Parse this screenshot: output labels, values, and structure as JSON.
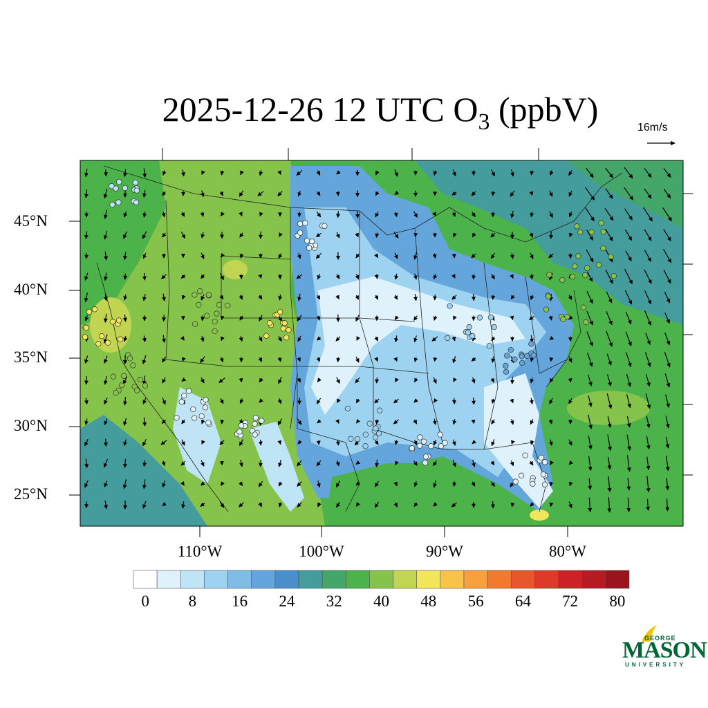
{
  "title": {
    "main": "2025-12-26 12 UTC O",
    "sub": "3",
    "units": " (ppbV)"
  },
  "wind_reference": {
    "label": "16m/s"
  },
  "latitude_labels": [
    "45°N",
    "40°N",
    "35°N",
    "30°N",
    "25°N"
  ],
  "longitude_labels": [
    "110°W",
    "100°W",
    "90°W",
    "80°W"
  ],
  "colorbar": {
    "tick_labels": [
      "0",
      "8",
      "16",
      "24",
      "32",
      "40",
      "48",
      "56",
      "64",
      "72",
      "80"
    ],
    "colors": [
      "#ffffff",
      "#dff1fa",
      "#bfe4f6",
      "#9dd3f0",
      "#7fbde6",
      "#64a6dc",
      "#4a8fcc",
      "#459c9c",
      "#45a66a",
      "#4bb34a",
      "#86c34a",
      "#c2d552",
      "#f4e65a",
      "#f9c24a",
      "#f8a03d",
      "#f27a2e",
      "#e8562b",
      "#dc3b2a",
      "#cc2228",
      "#b61b23",
      "#99151d"
    ]
  },
  "logo": {
    "top": "GEORGE",
    "main": "MASON",
    "bottom": "UNIVERSITY",
    "color": "#006633"
  },
  "map_colors": {
    "ocean_green": "#4bb34a",
    "plains_blue": "#64a6dc",
    "low_white": "#e4f3fb",
    "high_yellow": "#f4e65a",
    "teal": "#459c9c"
  }
}
